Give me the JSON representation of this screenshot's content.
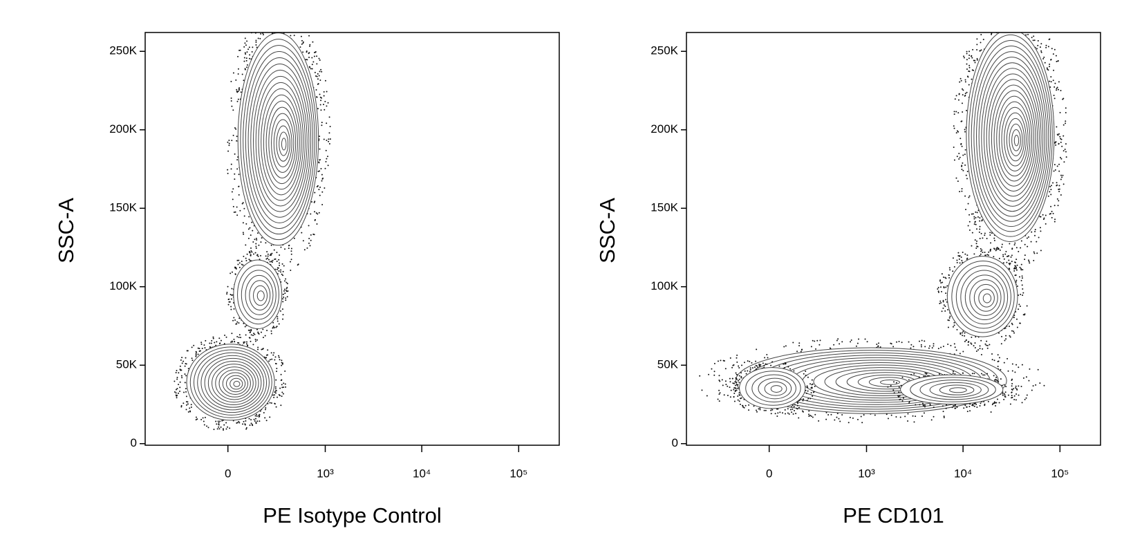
{
  "chart_data": [
    {
      "type": "contour",
      "x_label": "PE Isotype Control",
      "y_label": "SSC-A",
      "xscale": "biexponential",
      "xlim": [
        -700,
        262143
      ],
      "ylim": [
        -1000,
        262000
      ],
      "xticks": [
        0,
        {
          "value": 1000,
          "label": "10³"
        },
        {
          "value": 10000,
          "label": "10⁴"
        },
        {
          "value": 100000,
          "label": "10⁵"
        }
      ],
      "yticks": [
        0,
        {
          "value": 50000,
          "label": "50K"
        },
        {
          "value": 100000,
          "label": "100K"
        },
        {
          "value": 150000,
          "label": "150K"
        },
        {
          "value": 200000,
          "label": "200K"
        },
        {
          "value": 250000,
          "label": "250K"
        }
      ]
    },
    {
      "type": "contour",
      "x_label": "PE CD101",
      "y_label": "SSC-A",
      "xscale": "biexponential",
      "xlim": [
        -700,
        262143
      ],
      "ylim": [
        -1000,
        262000
      ],
      "xticks": [
        0,
        {
          "value": 1000,
          "label": "10³"
        },
        {
          "value": 10000,
          "label": "10⁴"
        },
        {
          "value": 100000,
          "label": "10⁵"
        }
      ],
      "yticks": [
        0,
        {
          "value": 50000,
          "label": "50K"
        },
        {
          "value": 100000,
          "label": "100K"
        },
        {
          "value": 150000,
          "label": "150K"
        },
        {
          "value": 200000,
          "label": "200K"
        },
        {
          "value": 250000,
          "label": "250K"
        }
      ]
    }
  ]
}
